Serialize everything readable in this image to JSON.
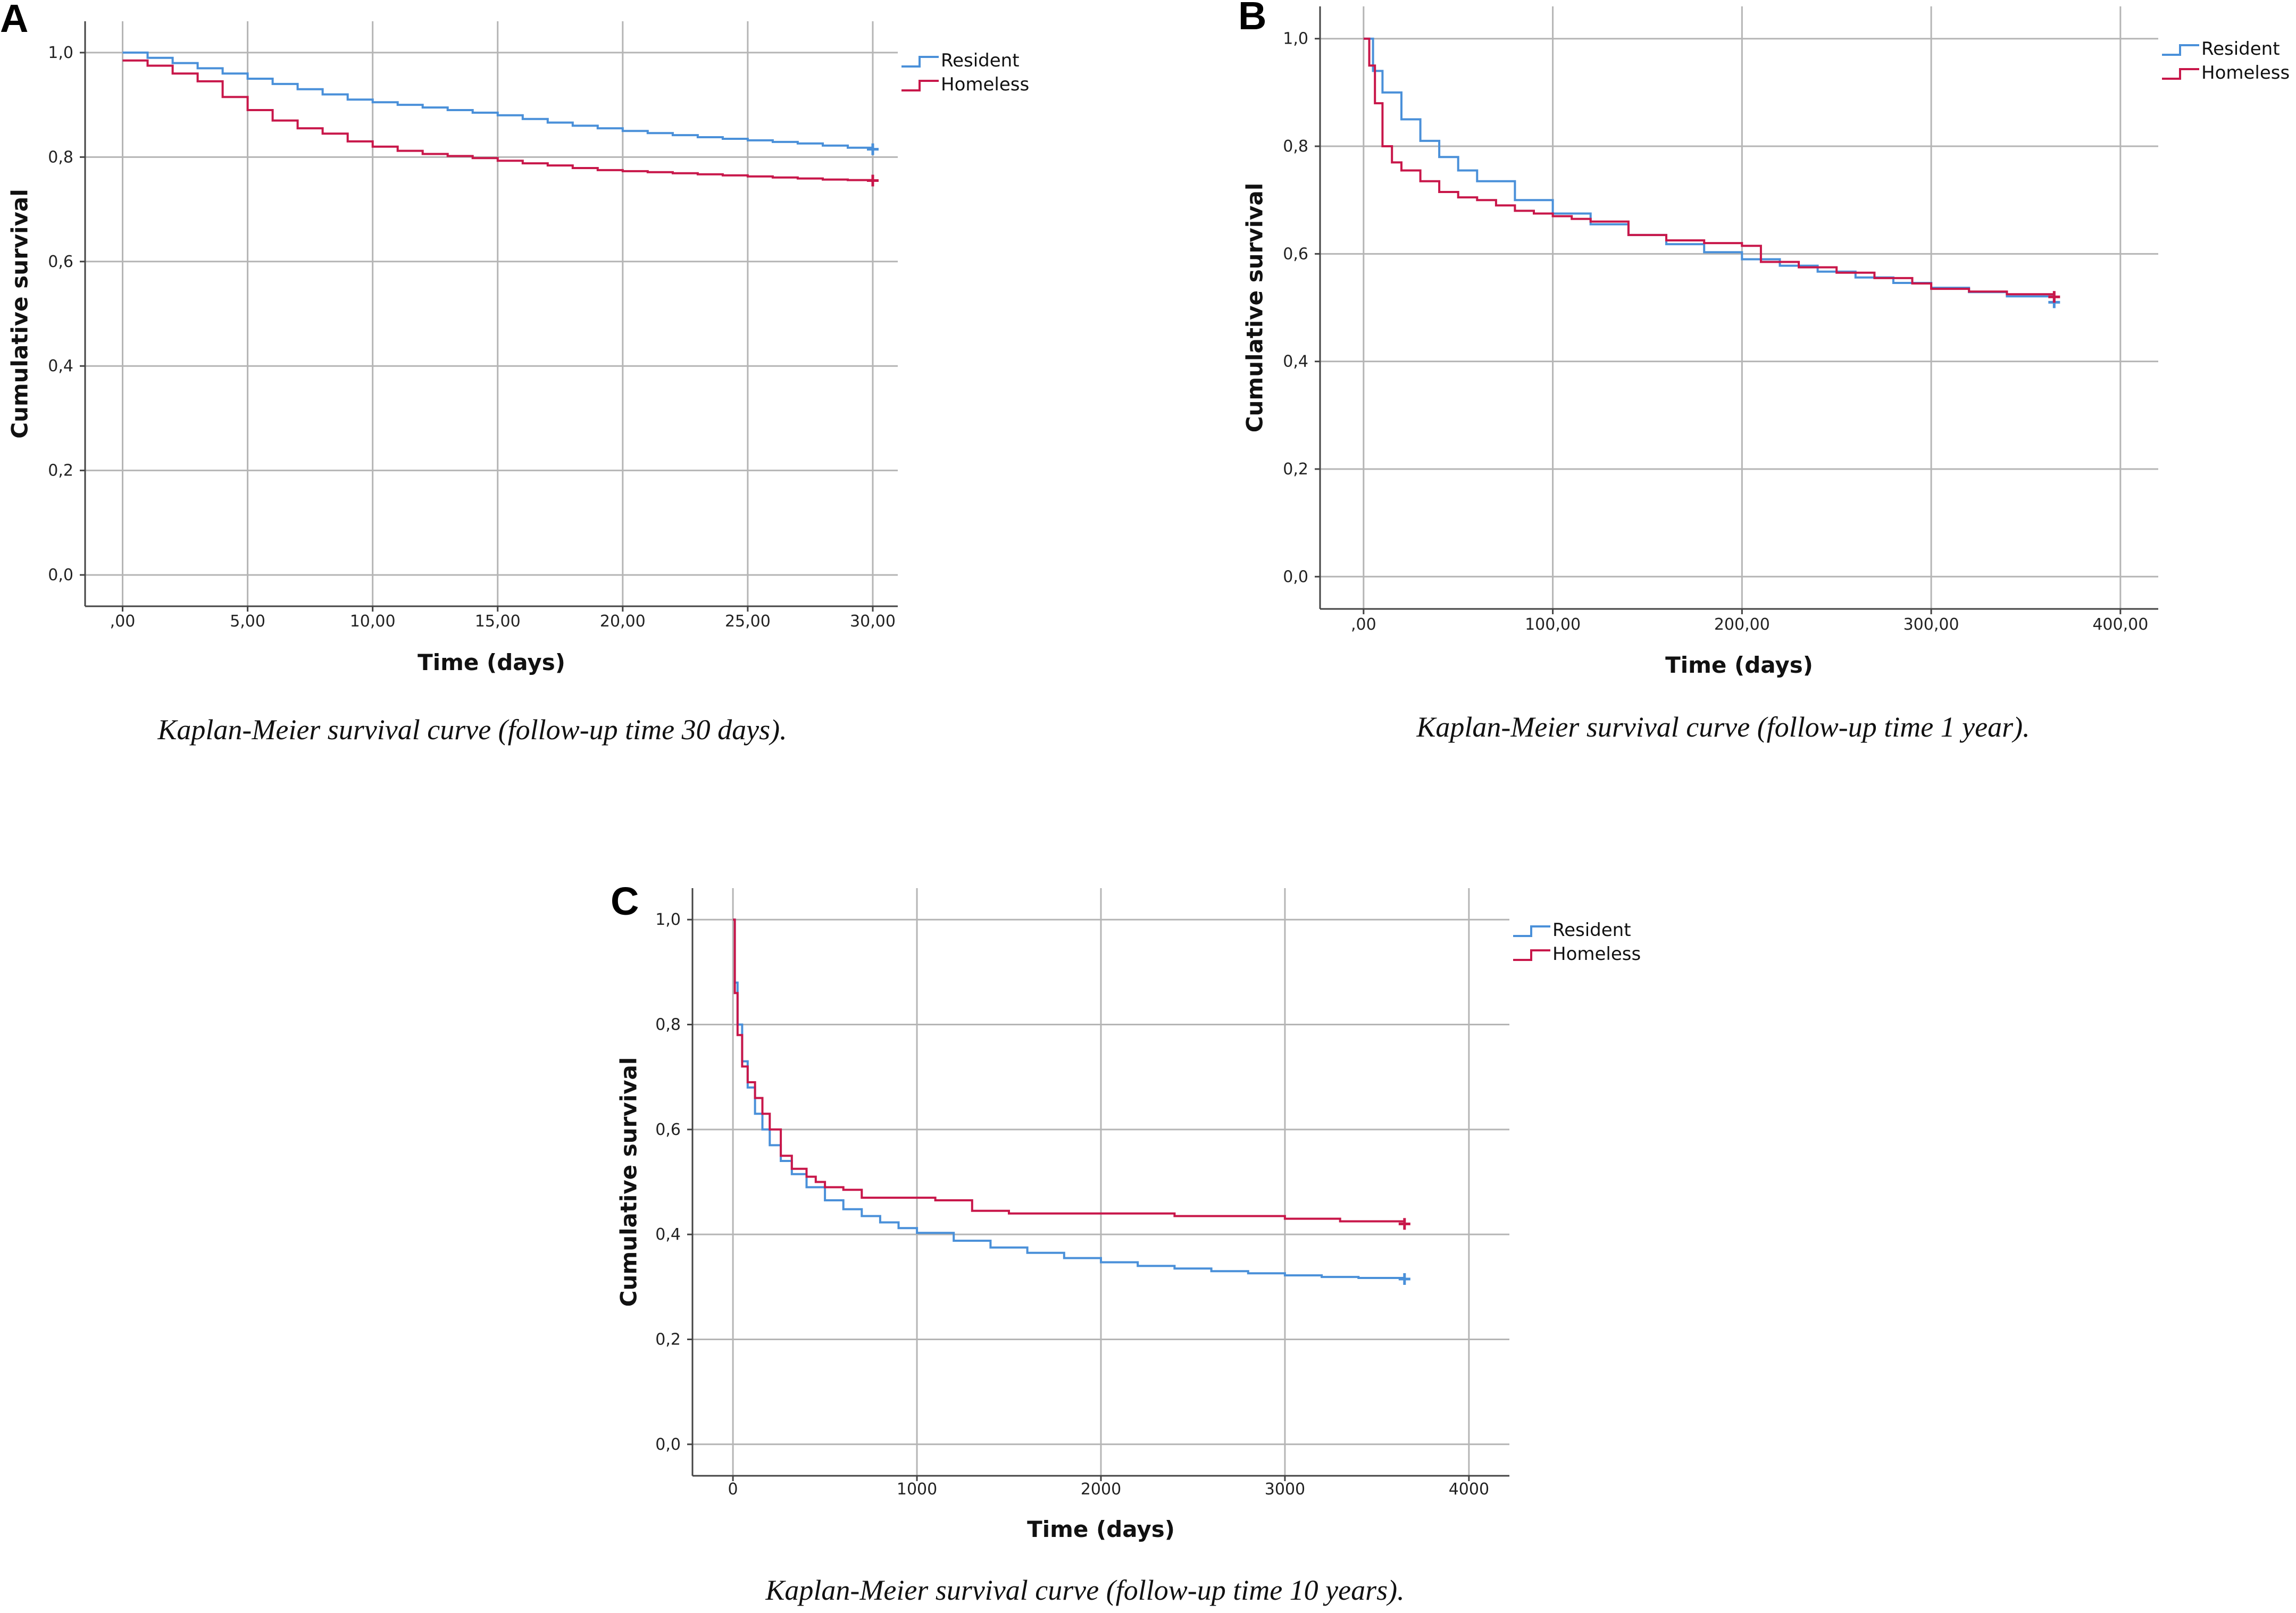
{
  "chart_data": [
    {
      "type": "line",
      "panel": "A",
      "title": "",
      "caption": "Kaplan-Meier survival curve (follow-up time 30 days).",
      "xlabel": "Time (days)",
      "ylabel": "Cumulative survival",
      "xlim": [
        -1.5,
        31
      ],
      "ylim": [
        -0.06,
        1.06
      ],
      "xticks": [
        0,
        5,
        10,
        15,
        20,
        25,
        30
      ],
      "xtick_labels": [
        ",00",
        "5,00",
        "10,00",
        "15,00",
        "20,00",
        "25,00",
        "30,00"
      ],
      "yticks": [
        0,
        0.2,
        0.4,
        0.6,
        0.8,
        1.0
      ],
      "ytick_labels": [
        "0,0",
        "0,2",
        "0,4",
        "0,6",
        "0,8",
        "1,0"
      ],
      "grid": true,
      "legend_position": "top-right",
      "series": [
        {
          "name": "Resident",
          "color": "#4a90d9",
          "censor": [
            30,
            0.815
          ],
          "x": [
            0,
            1,
            2,
            3,
            4,
            5,
            6,
            7,
            8,
            9,
            10,
            11,
            12,
            13,
            14,
            15,
            16,
            17,
            18,
            19,
            20,
            21,
            22,
            23,
            24,
            25,
            26,
            27,
            28,
            29,
            30
          ],
          "y": [
            1.0,
            0.99,
            0.98,
            0.97,
            0.96,
            0.95,
            0.94,
            0.93,
            0.92,
            0.91,
            0.905,
            0.9,
            0.895,
            0.89,
            0.885,
            0.88,
            0.873,
            0.866,
            0.86,
            0.855,
            0.85,
            0.846,
            0.842,
            0.838,
            0.835,
            0.832,
            0.829,
            0.826,
            0.822,
            0.818,
            0.815
          ]
        },
        {
          "name": "Homeless",
          "color": "#c8174a",
          "censor": [
            30,
            0.755
          ],
          "x": [
            0,
            1,
            2,
            3,
            4,
            5,
            6,
            7,
            8,
            9,
            10,
            11,
            12,
            13,
            14,
            15,
            16,
            17,
            18,
            19,
            20,
            21,
            22,
            23,
            24,
            25,
            26,
            27,
            28,
            29,
            30
          ],
          "y": [
            0.985,
            0.975,
            0.96,
            0.945,
            0.915,
            0.89,
            0.87,
            0.855,
            0.845,
            0.83,
            0.82,
            0.812,
            0.806,
            0.802,
            0.798,
            0.793,
            0.788,
            0.784,
            0.779,
            0.775,
            0.773,
            0.771,
            0.769,
            0.767,
            0.765,
            0.763,
            0.761,
            0.759,
            0.757,
            0.756,
            0.755
          ]
        }
      ]
    },
    {
      "type": "line",
      "panel": "B",
      "title": "",
      "caption": "Kaplan-Meier survival curve (follow-up time 1 year).",
      "xlabel": "Time (days)",
      "ylabel": "Cumulative survival",
      "xlim": [
        -23,
        420
      ],
      "ylim": [
        -0.06,
        1.06
      ],
      "xticks": [
        0,
        100,
        200,
        300,
        400
      ],
      "xtick_labels": [
        ",00",
        "100,00",
        "200,00",
        "300,00",
        "400,00"
      ],
      "yticks": [
        0,
        0.2,
        0.4,
        0.6,
        0.8,
        1.0
      ],
      "ytick_labels": [
        "0,0",
        "0,2",
        "0,4",
        "0,6",
        "0,8",
        "1,0"
      ],
      "grid": true,
      "legend_position": "top-right",
      "series": [
        {
          "name": "Resident",
          "color": "#4a90d9",
          "censor": [
            365,
            0.51
          ],
          "x": [
            0,
            5,
            10,
            20,
            30,
            40,
            50,
            60,
            80,
            100,
            120,
            140,
            160,
            180,
            200,
            220,
            240,
            260,
            280,
            300,
            320,
            340,
            365
          ],
          "y": [
            1.0,
            0.94,
            0.9,
            0.85,
            0.81,
            0.78,
            0.755,
            0.735,
            0.7,
            0.675,
            0.655,
            0.635,
            0.618,
            0.603,
            0.59,
            0.578,
            0.567,
            0.556,
            0.546,
            0.537,
            0.529,
            0.521,
            0.51
          ]
        },
        {
          "name": "Homeless",
          "color": "#c8174a",
          "censor": [
            365,
            0.52
          ],
          "x": [
            0,
            3,
            6,
            10,
            15,
            20,
            30,
            40,
            50,
            60,
            70,
            80,
            90,
            100,
            110,
            120,
            140,
            160,
            180,
            200,
            210,
            230,
            250,
            270,
            290,
            300,
            320,
            340,
            365
          ],
          "y": [
            1.0,
            0.95,
            0.88,
            0.8,
            0.77,
            0.755,
            0.735,
            0.715,
            0.705,
            0.7,
            0.69,
            0.68,
            0.675,
            0.67,
            0.665,
            0.66,
            0.635,
            0.625,
            0.62,
            0.615,
            0.585,
            0.575,
            0.565,
            0.555,
            0.545,
            0.535,
            0.53,
            0.525,
            0.52
          ]
        }
      ]
    },
    {
      "type": "line",
      "panel": "C",
      "title": "",
      "caption": "Kaplan-Meier survival curve (follow-up time 10 years).",
      "xlabel": "Time (days)",
      "ylabel": "Cumulative survival",
      "xlim": [
        -220,
        4220
      ],
      "ylim": [
        -0.06,
        1.06
      ],
      "xticks": [
        0,
        1000,
        2000,
        3000,
        4000
      ],
      "xtick_labels": [
        "0",
        "1000",
        "2000",
        "3000",
        "4000"
      ],
      "yticks": [
        0,
        0.2,
        0.4,
        0.6,
        0.8,
        1.0
      ],
      "ytick_labels": [
        "0,0",
        "0,2",
        "0,4",
        "0,6",
        "0,8",
        "1,0"
      ],
      "grid": true,
      "legend_position": "top-right",
      "series": [
        {
          "name": "Resident",
          "color": "#4a90d9",
          "censor": [
            3650,
            0.315
          ],
          "x": [
            0,
            10,
            25,
            50,
            80,
            120,
            160,
            200,
            260,
            320,
            400,
            500,
            600,
            700,
            800,
            900,
            1000,
            1200,
            1400,
            1600,
            1800,
            2000,
            2200,
            2400,
            2600,
            2800,
            3000,
            3200,
            3400,
            3650
          ],
          "y": [
            1.0,
            0.88,
            0.8,
            0.73,
            0.68,
            0.63,
            0.6,
            0.57,
            0.54,
            0.515,
            0.49,
            0.465,
            0.448,
            0.435,
            0.423,
            0.412,
            0.403,
            0.388,
            0.375,
            0.365,
            0.355,
            0.347,
            0.34,
            0.335,
            0.33,
            0.326,
            0.322,
            0.319,
            0.317,
            0.315
          ]
        },
        {
          "name": "Homeless",
          "color": "#c8174a",
          "censor": [
            3650,
            0.42
          ],
          "x": [
            0,
            10,
            25,
            50,
            80,
            120,
            160,
            200,
            260,
            320,
            400,
            450,
            500,
            600,
            700,
            900,
            1100,
            1300,
            1500,
            1800,
            2100,
            2400,
            2700,
            3000,
            3300,
            3650
          ],
          "y": [
            1.0,
            0.86,
            0.78,
            0.72,
            0.69,
            0.66,
            0.63,
            0.6,
            0.55,
            0.525,
            0.51,
            0.5,
            0.49,
            0.485,
            0.47,
            0.47,
            0.465,
            0.445,
            0.44,
            0.44,
            0.44,
            0.435,
            0.435,
            0.43,
            0.425,
            0.42
          ]
        }
      ]
    }
  ]
}
